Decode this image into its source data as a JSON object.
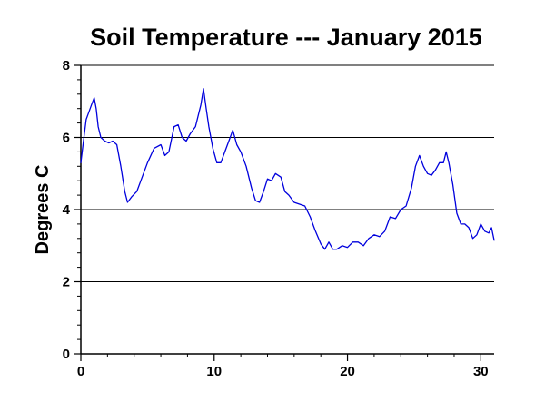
{
  "chart_data": {
    "type": "line",
    "title": "Soil Temperature --- January 2015",
    "xlabel": "",
    "ylabel": "Degrees C",
    "xlim": [
      0,
      31
    ],
    "ylim": [
      0,
      8
    ],
    "x_ticks": [
      0,
      10,
      20,
      30
    ],
    "y_ticks": [
      0,
      2,
      4,
      6,
      8
    ],
    "grid": "horizontal",
    "colors": {
      "line": "#0000dd",
      "grid": "#000000"
    },
    "series": [
      {
        "x": [
          0,
          0.2,
          0.4,
          0.6,
          0.8,
          1.0,
          1.15,
          1.3,
          1.5,
          1.8,
          2.1,
          2.4,
          2.7,
          3.0,
          3.3,
          3.5,
          3.8,
          4.2,
          4.6,
          5.0,
          5.5,
          6.0,
          6.3,
          6.6,
          7.0,
          7.3,
          7.6,
          7.9,
          8.2,
          8.6,
          9.0,
          9.2,
          9.4,
          9.6,
          9.9,
          10.2,
          10.5,
          10.8,
          11.1,
          11.4,
          11.7,
          12.0,
          12.4,
          12.8,
          13.1,
          13.4,
          13.7,
          14.0,
          14.3,
          14.6,
          15.0,
          15.3,
          15.6,
          16.0,
          16.4,
          16.8,
          17.2,
          17.6,
          18.0,
          18.3,
          18.6,
          18.9,
          19.2,
          19.6,
          20.0,
          20.4,
          20.8,
          21.2,
          21.6,
          22.0,
          22.4,
          22.8,
          23.2,
          23.6,
          24.0,
          24.4,
          24.8,
          25.1,
          25.4,
          25.7,
          26.0,
          26.3,
          26.6,
          26.9,
          27.2,
          27.4,
          27.6,
          27.9,
          28.2,
          28.5,
          28.8,
          29.1,
          29.4,
          29.7,
          30.0,
          30.3,
          30.6,
          30.8,
          31.0
        ],
        "y": [
          5.3,
          5.9,
          6.5,
          6.7,
          6.9,
          7.1,
          6.8,
          6.3,
          6.0,
          5.9,
          5.85,
          5.9,
          5.8,
          5.2,
          4.5,
          4.2,
          4.35,
          4.5,
          4.9,
          5.3,
          5.7,
          5.8,
          5.5,
          5.6,
          6.3,
          6.35,
          6.0,
          5.9,
          6.1,
          6.3,
          6.9,
          7.35,
          6.8,
          6.3,
          5.7,
          5.3,
          5.3,
          5.6,
          5.9,
          6.2,
          5.8,
          5.6,
          5.2,
          4.6,
          4.25,
          4.2,
          4.5,
          4.85,
          4.8,
          5.0,
          4.9,
          4.5,
          4.4,
          4.2,
          4.15,
          4.1,
          3.8,
          3.4,
          3.05,
          2.9,
          3.1,
          2.9,
          2.9,
          3.0,
          2.95,
          3.1,
          3.1,
          3.0,
          3.2,
          3.3,
          3.25,
          3.4,
          3.8,
          3.75,
          4.0,
          4.1,
          4.6,
          5.2,
          5.5,
          5.2,
          5.0,
          4.95,
          5.1,
          5.3,
          5.3,
          5.6,
          5.3,
          4.7,
          3.9,
          3.6,
          3.6,
          3.5,
          3.2,
          3.3,
          3.6,
          3.4,
          3.35,
          3.5,
          3.15
        ]
      }
    ]
  }
}
